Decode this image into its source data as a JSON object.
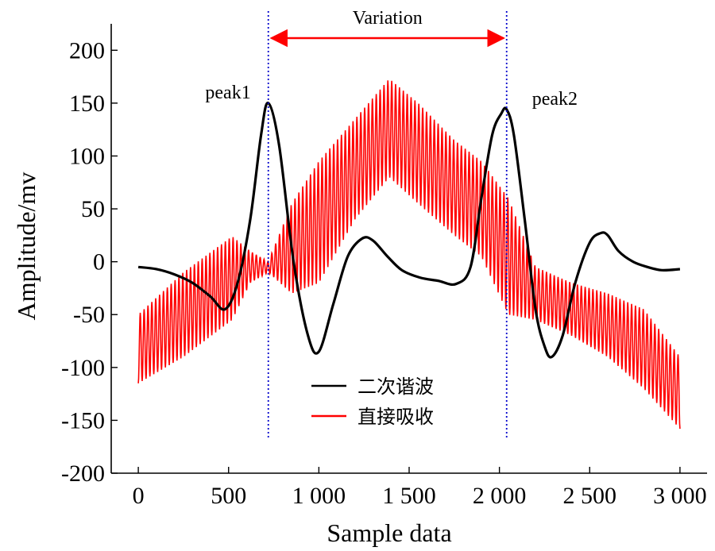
{
  "chart_data": {
    "type": "line",
    "title": "",
    "xlabel": "Sample data",
    "ylabel": "Amplitude/mv",
    "xlim": [
      -150,
      3150
    ],
    "ylim": [
      -200,
      225
    ],
    "x_ticks": [
      0,
      500,
      1000,
      1500,
      2000,
      2500,
      3000
    ],
    "x_tick_labels": [
      "0",
      "500",
      "1 000",
      "1 500",
      "2 000",
      "2 500",
      "3 000"
    ],
    "y_ticks": [
      200,
      150,
      100,
      50,
      0,
      -50,
      -100,
      -150,
      -200
    ],
    "y_tick_labels": [
      "200",
      "150",
      "100",
      "50",
      "0",
      "-50",
      "-100",
      "-150",
      "-200"
    ],
    "grid": false,
    "legend_position": "bottom-center",
    "series": [
      {
        "name": "二次谐波",
        "color": "#000000",
        "x": [
          0,
          100,
          200,
          300,
          400,
          480,
          550,
          620,
          680,
          720,
          780,
          860,
          940,
          1000,
          1080,
          1160,
          1240,
          1300,
          1380,
          1460,
          1560,
          1660,
          1760,
          1840,
          1900,
          1960,
          2010,
          2040,
          2080,
          2140,
          2200,
          2250,
          2290,
          2350,
          2420,
          2500,
          2560,
          2600,
          2660,
          2740,
          2820,
          2900,
          3000
        ],
        "y": [
          -5,
          -7,
          -12,
          -20,
          -33,
          -45,
          -20,
          40,
          120,
          150,
          110,
          0,
          -70,
          -85,
          -40,
          5,
          22,
          20,
          5,
          -8,
          -15,
          -18,
          -21,
          -5,
          60,
          120,
          140,
          144,
          120,
          40,
          -45,
          -80,
          -90,
          -70,
          -20,
          18,
          27,
          25,
          10,
          0,
          -5,
          -8,
          -7
        ]
      },
      {
        "name": "直接吸收",
        "color": "#ff0000",
        "x": [
          0,
          250,
          520,
          620,
          720,
          850,
          1000,
          1200,
          1390,
          1550,
          1750,
          1900,
          2050,
          2200,
          2400,
          2600,
          2800,
          3000
        ],
        "y_upper": [
          -50,
          -10,
          24,
          10,
          0,
          55,
          95,
          135,
          173,
          150,
          115,
          95,
          60,
          -5,
          -20,
          -30,
          -45,
          -90
        ],
        "y_lower": [
          -115,
          -90,
          -55,
          -20,
          -10,
          -30,
          -20,
          40,
          80,
          55,
          25,
          5,
          -50,
          -55,
          -70,
          -90,
          -120,
          -158
        ],
        "oscillation_cycles": 140
      }
    ],
    "annotations": [
      {
        "text": "peak1",
        "x": 720,
        "y": 150
      },
      {
        "text": "peak2",
        "x": 2040,
        "y": 144
      },
      {
        "text": "Variation",
        "x_from": 720,
        "x_to": 2040
      }
    ],
    "vertical_markers": [
      {
        "x": 720,
        "color": "#0000cc",
        "style": "dotted"
      },
      {
        "x": 2040,
        "color": "#0000cc",
        "style": "dotted"
      }
    ]
  }
}
